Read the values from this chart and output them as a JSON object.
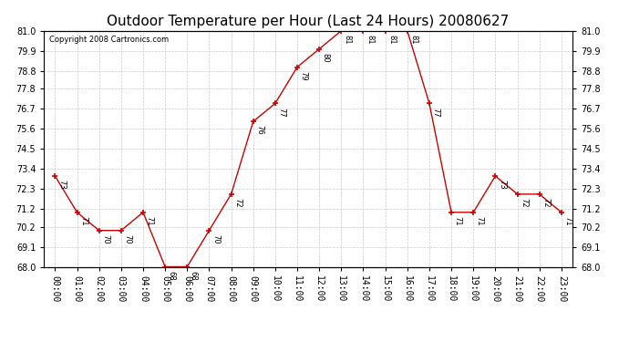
{
  "title": "Outdoor Temperature per Hour (Last 24 Hours) 20080627",
  "copyright": "Copyright 2008 Cartronics.com",
  "hours": [
    "00:00",
    "01:00",
    "02:00",
    "03:00",
    "04:00",
    "05:00",
    "06:00",
    "07:00",
    "08:00",
    "09:00",
    "10:00",
    "11:00",
    "12:00",
    "13:00",
    "14:00",
    "15:00",
    "16:00",
    "17:00",
    "18:00",
    "19:00",
    "20:00",
    "21:00",
    "22:00",
    "23:00"
  ],
  "temps": [
    73,
    71,
    70,
    70,
    71,
    68,
    68,
    70,
    72,
    76,
    77,
    79,
    80,
    81,
    81,
    81,
    81,
    77,
    71,
    71,
    73,
    72,
    72,
    71
  ],
  "line_color": "#cc0000",
  "marker": "+",
  "marker_color": "#cc0000",
  "grid_color": "#cccccc",
  "bg_color": "#ffffff",
  "ylim_min": 68.0,
  "ylim_max": 81.0,
  "yticks": [
    68.0,
    69.1,
    70.2,
    71.2,
    72.3,
    73.4,
    74.5,
    75.6,
    76.7,
    77.8,
    78.8,
    79.9,
    81.0
  ],
  "title_fontsize": 11,
  "copyright_fontsize": 6,
  "label_fontsize": 6,
  "tick_fontsize": 7
}
